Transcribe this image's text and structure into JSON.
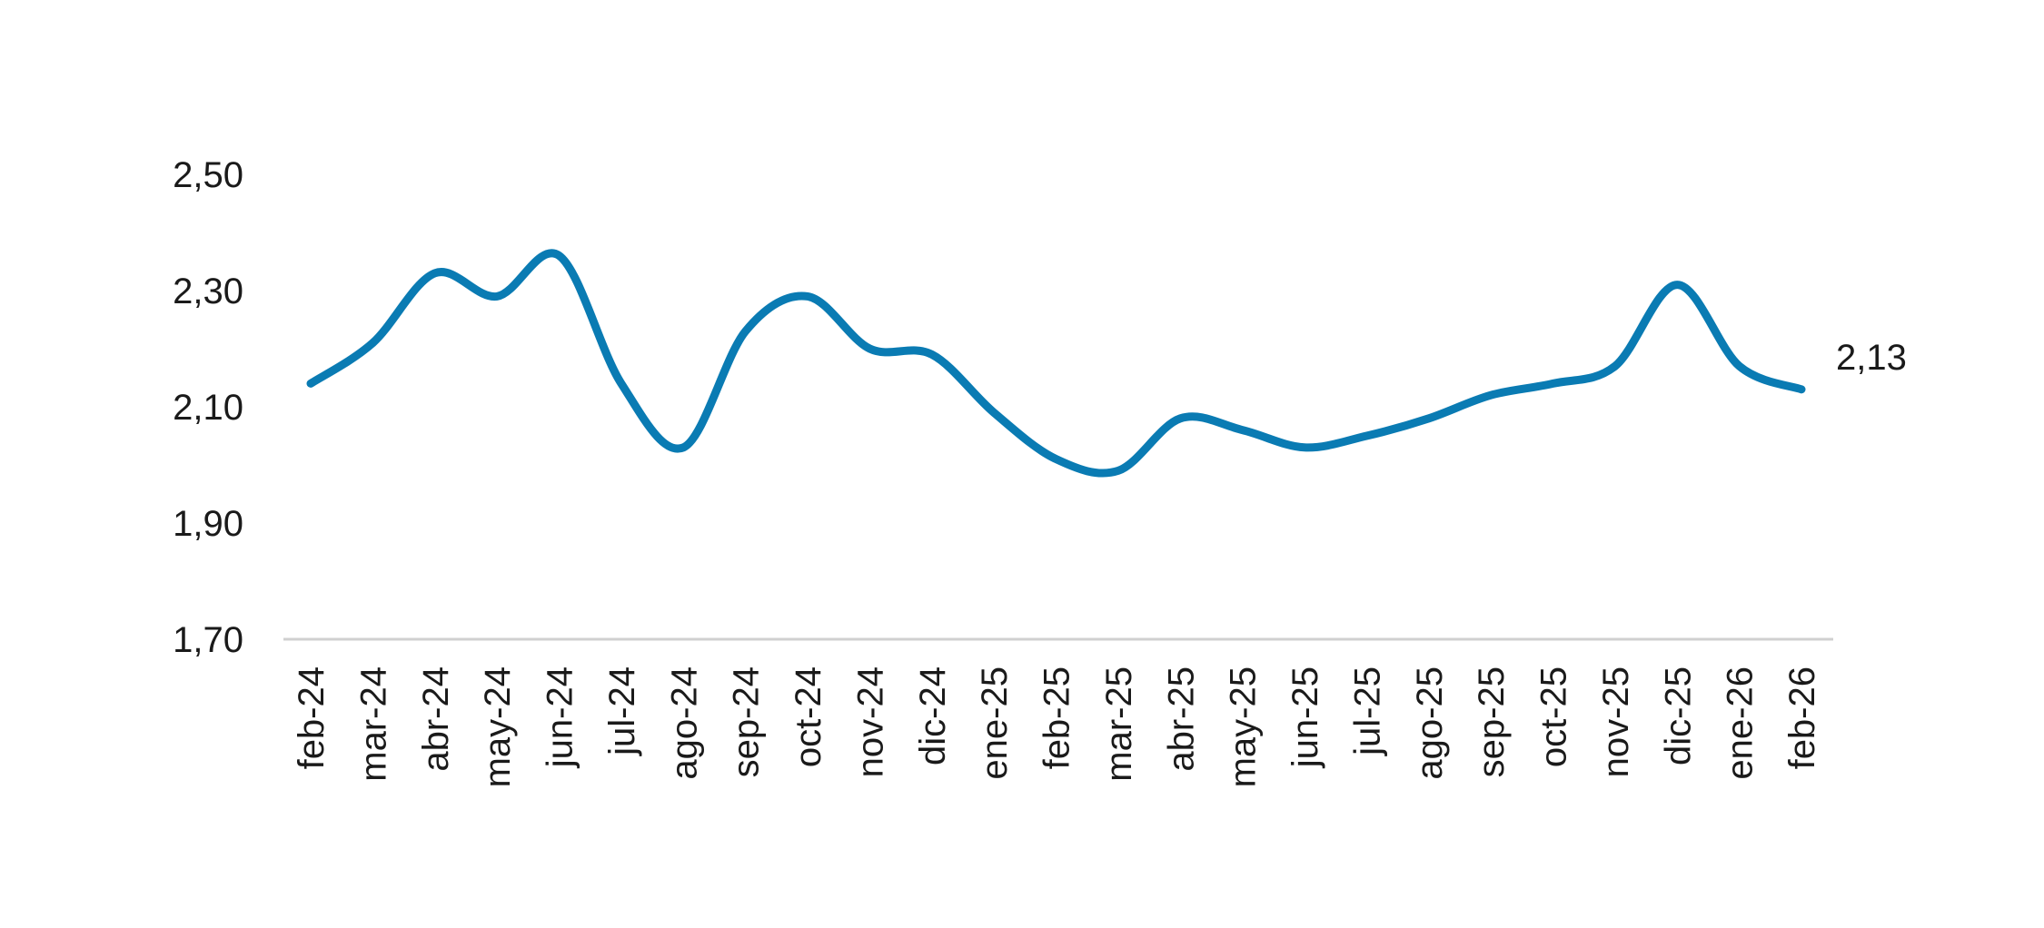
{
  "chart_data": {
    "type": "line",
    "title": "",
    "xlabel": "",
    "ylabel": "",
    "x": [
      "feb-24",
      "mar-24",
      "abr-24",
      "may-24",
      "jun-24",
      "jul-24",
      "ago-24",
      "sep-24",
      "oct-24",
      "nov-24",
      "dic-24",
      "ene-25",
      "feb-25",
      "mar-25",
      "abr-25",
      "may-25",
      "jun-25",
      "jul-25",
      "ago-25",
      "sep-25",
      "oct-25",
      "nov-25",
      "dic-25",
      "ene-26",
      "feb-26"
    ],
    "series": [
      {
        "values": [
          2.14,
          2.21,
          2.33,
          2.29,
          2.36,
          2.14,
          2.03,
          2.23,
          2.29,
          2.2,
          2.19,
          2.09,
          2.01,
          1.99,
          2.08,
          2.06,
          2.03,
          2.05,
          2.08,
          2.12,
          2.14,
          2.17,
          2.31,
          2.17,
          2.13
        ],
        "color": "#0A7BB3"
      }
    ],
    "ylim": [
      1.7,
      2.5
    ],
    "yticks": [
      "1,70",
      "1,90",
      "2,10",
      "2,30",
      "2,50"
    ],
    "ytick_values": [
      1.7,
      1.9,
      2.1,
      2.3,
      2.5
    ],
    "end_label": "2,13",
    "grid": false,
    "legend": "none",
    "axis_color": "#d0d0d0"
  }
}
